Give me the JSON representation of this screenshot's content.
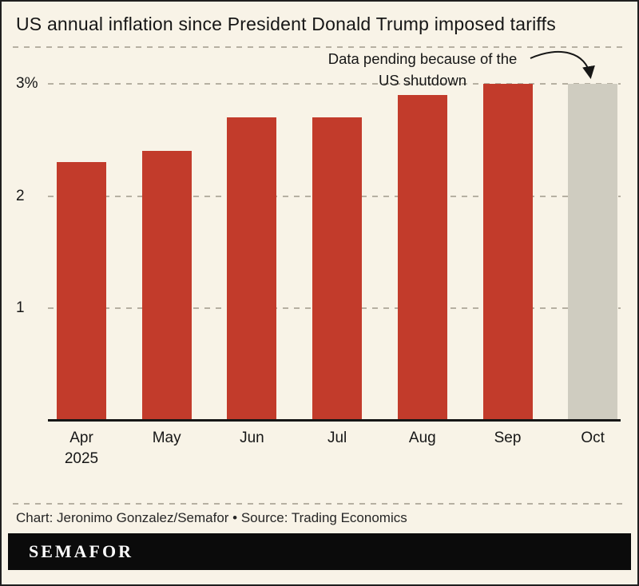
{
  "header": {
    "title": "US annual inflation since President Donald Trump imposed tariffs"
  },
  "chart_data": {
    "type": "bar",
    "title": "US annual inflation since President Donald Trump imposed tariffs",
    "categories": [
      "Apr",
      "May",
      "Jun",
      "Jul",
      "Aug",
      "Sep",
      "Oct"
    ],
    "year_label": "2025",
    "year_label_index": 0,
    "values": [
      2.3,
      2.4,
      2.7,
      2.7,
      2.9,
      3.0,
      3.0
    ],
    "pending_index": 6,
    "pending_note": "Data pending because of the US shutdown",
    "xlabel": "",
    "ylabel": "",
    "ylim": [
      0,
      3.3
    ],
    "yticks": [
      {
        "value": 1,
        "label": "1"
      },
      {
        "value": 2,
        "label": "2"
      },
      {
        "value": 3,
        "label": "3%"
      }
    ],
    "grid": "dashed-horizontal",
    "legend": "none"
  },
  "annotation": {
    "line1": "Data pending because of the",
    "line2": "US shutdown"
  },
  "footer": {
    "credit": "Chart: Jeronimo Gonzalez/Semafor • Source: Trading Economics",
    "logo": "SEMAFOR"
  },
  "colors": {
    "background": "#f8f3e7",
    "bar": "#c23b2b",
    "pending_bar": "#cfccc0",
    "text": "#161616",
    "gridline": "#b6b0a2",
    "footer_bar": "#0b0b0b",
    "logo_text": "#ffffff"
  }
}
